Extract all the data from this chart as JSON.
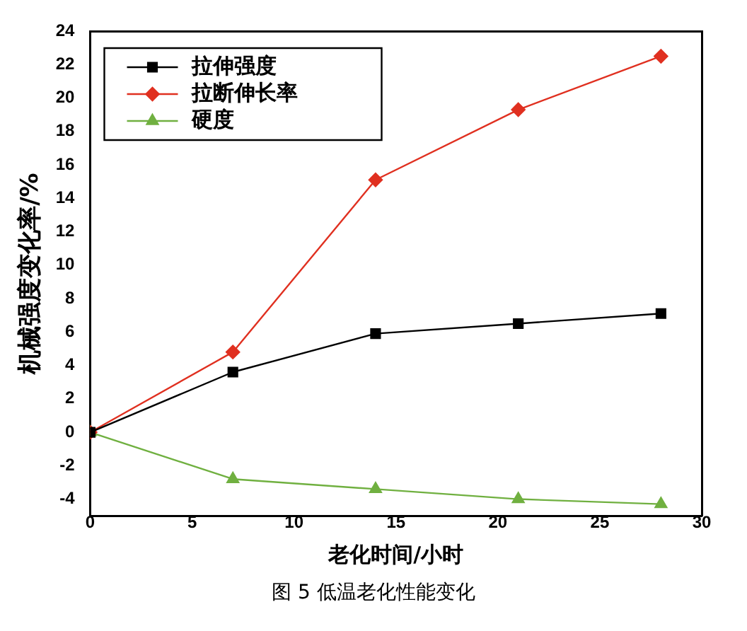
{
  "chart_data": {
    "type": "line",
    "xlabel": "老化时间/小时",
    "ylabel": "机械强度变化率/%",
    "annotations": [
      "图 5 低温老化性能变化"
    ],
    "x": [
      0,
      7,
      14,
      21,
      28
    ],
    "series": [
      {
        "name": "拉伸强度",
        "color": "#000000",
        "marker": "square",
        "values": [
          0,
          3.6,
          5.9,
          6.5,
          7.1
        ]
      },
      {
        "name": "拉断伸长率",
        "color": "#e03020",
        "marker": "diamond",
        "values": [
          0,
          4.8,
          15.1,
          19.3,
          22.5
        ]
      },
      {
        "name": "硬度",
        "color": "#70b040",
        "marker": "triangle",
        "values": [
          0,
          -2.8,
          -3.4,
          -4.0,
          -4.3
        ]
      }
    ],
    "xlim": [
      0,
      30
    ],
    "xticks": [
      0,
      5,
      10,
      15,
      20,
      25,
      30
    ],
    "ylim": [
      -5,
      24
    ],
    "yticks": [
      -4,
      -2,
      0,
      2,
      4,
      6,
      8,
      10,
      12,
      14,
      16,
      18,
      20,
      22,
      24
    ],
    "grid": false,
    "legend": "top left",
    "line_style": "solid"
  }
}
